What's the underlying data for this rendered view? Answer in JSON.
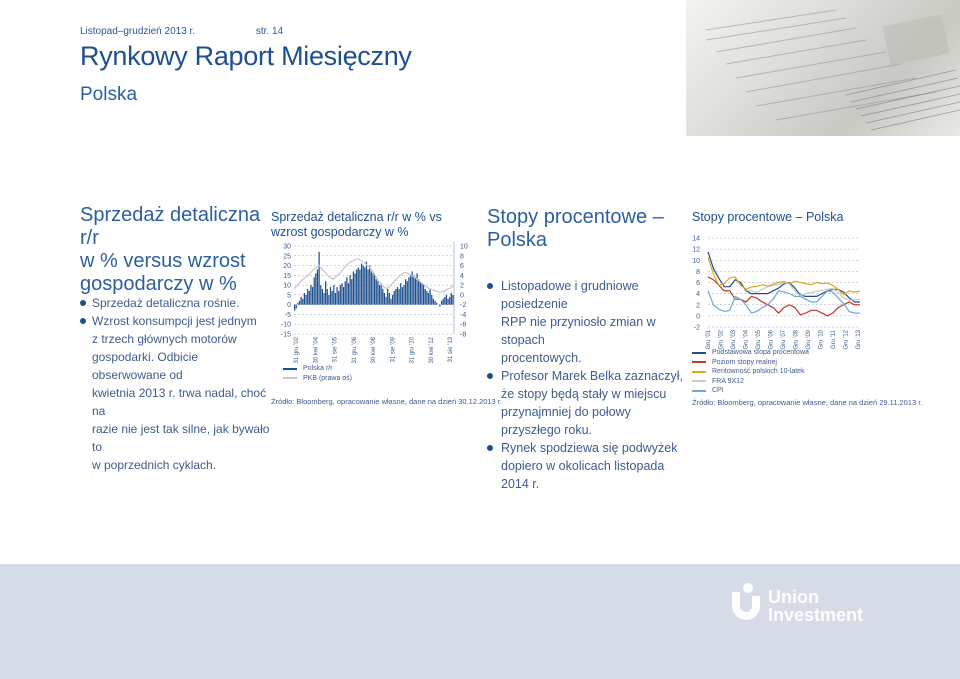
{
  "header": {
    "date": "Listopad–grudzień 2013 r.",
    "page": "str. 14",
    "title": "Rynkowy Raport Miesięczny",
    "subtitle": "Polska"
  },
  "left_section": {
    "heading": [
      "Sprzedaż detaliczna r/r",
      "w % versus wzrost",
      "gospodarczy w %"
    ],
    "bullets": [
      [
        "Sprzedaż detaliczna rośnie."
      ],
      [
        "Wzrost konsumpcji jest jednym",
        "z trzech głównych motorów",
        "gospodarki. Odbicie obserwowane od",
        "kwietnia 2013 r. trwa nadal, choć na",
        "razie nie jest tak silne, jak bywało to",
        "w poprzednich cyklach."
      ]
    ]
  },
  "chart1": {
    "title": [
      "Sprzedaż detaliczna r/r w % vs",
      "wzrost gospodarczy w %"
    ],
    "legend": [
      {
        "label": "Polska r/r",
        "color": "#1e4f8e"
      },
      {
        "label": "PKB (prawa oś)",
        "color": "#c9c9c9"
      }
    ],
    "source": "Źródło: Bloomberg, opracowanie własne, dane na dzień 30.12.2013 r."
  },
  "middle_section": {
    "heading": [
      "Stopy procentowe –",
      "Polska"
    ],
    "bullets": [
      [
        "Listopadowe i grudniowe posiedzenie",
        "RPP nie przyniosło zmian w stopach",
        "procentowych."
      ],
      [
        "Profesor Marek Belka zaznaczył,",
        "że stopy będą stały w miejscu",
        "przynajmniej do połowy",
        "przyszłego roku."
      ],
      [
        "Rynek spodziewa się podwyżek",
        "dopiero w okolicach listopada 2014 r."
      ]
    ]
  },
  "chart2": {
    "title": "Stopy procentowe – Polska",
    "legend": [
      {
        "label": "Podstawowa stopa procentowa",
        "color": "#1e4f8e"
      },
      {
        "label": "Poziom stopy realnej",
        "color": "#c0392b"
      },
      {
        "label": "Rentowność polskich 10-latek",
        "color": "#e0a91e"
      },
      {
        "label": "FRA 9X12",
        "color": "#c9c9c9"
      },
      {
        "label": "CPI",
        "color": "#6fa7d8"
      }
    ],
    "source": "Źródło: Bloomberg, opracowanie własne, dane na dzień 29.11.2013 r."
  },
  "footer": {
    "logo_line1": "Union",
    "logo_line2": "Investment"
  },
  "chart_data": [
    {
      "type": "bar",
      "title": "Sprzedaż detaliczna r/r w % vs wzrost gospodarczy w %",
      "y_left_ticks": [
        "30",
        "25",
        "20",
        "15",
        "10",
        "5",
        "0",
        "-5",
        "-10",
        "-15"
      ],
      "y_right_ticks": [
        "10",
        "8",
        "6",
        "4",
        "2",
        "0",
        "-2",
        "-4",
        "-6",
        "-8"
      ],
      "ylim_left": [
        -15,
        30
      ],
      "ylim_right": [
        -8,
        10
      ],
      "x_tick_labels": [
        "31 gru '02",
        "30 kwi '04",
        "31 sie '05",
        "31 gru '06",
        "30 kwi '08",
        "31 sie '09",
        "31 gru '10",
        "30 kwi '12",
        "31 sie '13"
      ],
      "series": [
        {
          "name": "Polska r/r",
          "kind": "bars",
          "axis": "left",
          "values": [
            -3,
            -2,
            1,
            2,
            4,
            3,
            6,
            5,
            8,
            7,
            10,
            9,
            14,
            16,
            18,
            27,
            10,
            8,
            6,
            12,
            8,
            5,
            9,
            7,
            10,
            6,
            9,
            7,
            10,
            11,
            9,
            12,
            14,
            11,
            15,
            13,
            17,
            16,
            18,
            19,
            18,
            21,
            20,
            19,
            22,
            18,
            20,
            17,
            16,
            15,
            13,
            12,
            10,
            11,
            8,
            6,
            4,
            8,
            6,
            3,
            5,
            7,
            8,
            9,
            8,
            11,
            9,
            10,
            13,
            12,
            14,
            15,
            17,
            15,
            14,
            16,
            13,
            12,
            11,
            10,
            8,
            7,
            6,
            8,
            5,
            3,
            2,
            1,
            0,
            -1,
            2,
            3,
            4,
            5,
            3,
            4,
            6,
            5
          ]
        },
        {
          "name": "PKB (prawa oś)",
          "kind": "line",
          "axis": "right",
          "values": [
            1.2,
            2.0,
            2.8,
            3.5,
            4.0,
            4.8,
            5.5,
            6.0,
            5.2,
            4.4,
            3.6,
            3.2,
            3.8,
            4.5,
            5.4,
            6.3,
            6.8,
            7.1,
            7.4,
            7.0,
            6.4,
            5.8,
            5.0,
            3.8,
            2.6,
            1.7,
            1.3,
            1.8,
            2.6,
            3.4,
            4.1,
            4.6,
            4.4,
            4.0,
            3.6,
            3.0,
            2.4,
            1.8,
            1.3,
            1.0,
            0.8,
            0.5,
            0.7,
            1.1,
            1.4,
            2.0
          ]
        }
      ]
    },
    {
      "type": "line",
      "title": "Stopy procentowe – Polska",
      "y_ticks": [
        "14",
        "12",
        "10",
        "8",
        "6",
        "4",
        "2",
        "0",
        "-2"
      ],
      "ylim": [
        -2,
        14
      ],
      "x_tick_labels": [
        "Gru '01",
        "Gru '02",
        "Gru '03",
        "Gru '04",
        "Gru '05",
        "Gru '06",
        "Gru '07",
        "Gru '08",
        "Gru '09",
        "Gru '10",
        "Gru '11",
        "Gru '12",
        "Gru '13"
      ],
      "series": [
        {
          "name": "Podstawowa stopa procentowa",
          "color": "#1e4f8e",
          "values": [
            11.5,
            8.5,
            6.75,
            5.25,
            5.25,
            6.5,
            6.0,
            4.5,
            4.0,
            4.0,
            4.0,
            4.0,
            4.5,
            5.0,
            5.75,
            6.0,
            5.0,
            3.75,
            3.5,
            3.5,
            3.5,
            4.0,
            4.5,
            4.75,
            4.75,
            4.25,
            3.25,
            2.5,
            2.5
          ]
        },
        {
          "name": "Poziom stopy realnej",
          "color": "#c0392b",
          "values": [
            7.0,
            6.5,
            5.5,
            4.5,
            4.5,
            3.0,
            3.0,
            2.5,
            3.5,
            3.2,
            2.5,
            2.0,
            1.5,
            0.5,
            1.5,
            2.0,
            1.5,
            0.2,
            0.5,
            1.0,
            1.0,
            0.5,
            0.0,
            0.5,
            1.5,
            2.0,
            2.5,
            2.0,
            2.0
          ]
        },
        {
          "name": "Rentowność polskich 10-latek",
          "color": "#e0a91e",
          "values": [
            10.5,
            7.5,
            5.5,
            5.8,
            6.8,
            7.0,
            5.5,
            4.8,
            5.2,
            5.3,
            5.6,
            5.4,
            5.7,
            6.0,
            6.2,
            5.8,
            6.2,
            6.0,
            5.8,
            5.6,
            6.0,
            5.8,
            5.9,
            5.5,
            4.7,
            3.8,
            4.5,
            4.3,
            4.4
          ]
        },
        {
          "name": "FRA 9X12",
          "color": "#c9c9c9",
          "values": [
            null,
            null,
            null,
            null,
            null,
            null,
            null,
            4.6,
            4.5,
            4.2,
            4.8,
            5.2,
            5.5,
            5.6,
            6.0,
            5.7,
            4.5,
            3.6,
            4.0,
            4.2,
            4.4,
            4.6,
            4.8,
            4.9,
            4.2,
            3.2,
            2.8,
            2.9,
            3.0
          ]
        },
        {
          "name": "CPI",
          "color": "#6fa7d8",
          "values": [
            4.5,
            2.0,
            1.2,
            0.8,
            1.0,
            3.5,
            3.0,
            2.0,
            0.5,
            0.8,
            1.5,
            2.0,
            3.0,
            4.5,
            4.3,
            4.0,
            3.5,
            3.5,
            3.0,
            2.5,
            2.5,
            3.5,
            4.5,
            4.3,
            3.2,
            2.2,
            0.8,
            0.5,
            0.5
          ]
        }
      ]
    }
  ]
}
